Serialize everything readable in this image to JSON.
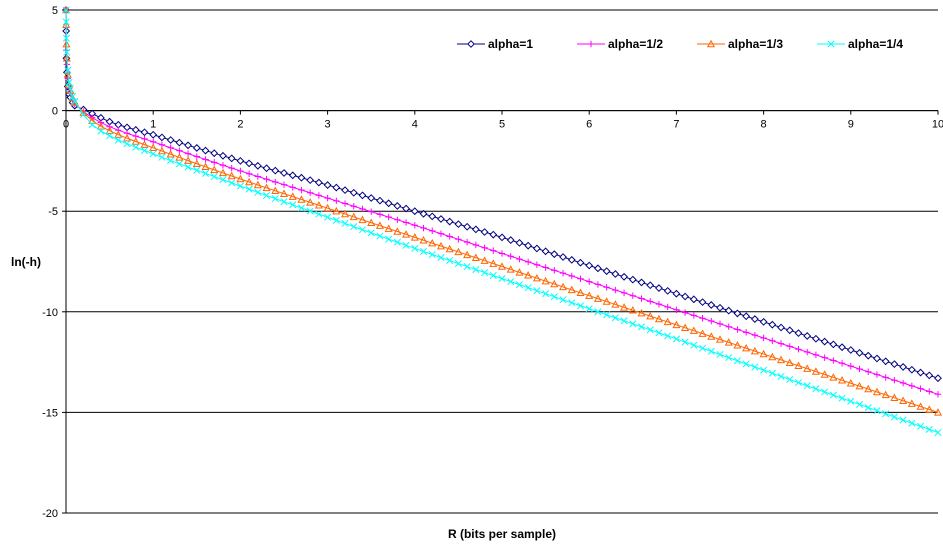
{
  "chart_data": {
    "type": "line",
    "title": "",
    "xlabel": "R (bits per sample)",
    "ylabel": "ln(-h)",
    "xlim": [
      0,
      10
    ],
    "ylim": [
      -20,
      5
    ],
    "x_ticks": [
      "0",
      "1",
      "2",
      "3",
      "4",
      "5",
      "6",
      "7",
      "8",
      "9",
      "10"
    ],
    "y_ticks": [
      "5",
      "0",
      "-5",
      "-10",
      "-15",
      "-20"
    ],
    "grid": "horizontal",
    "legend_position": "top-right",
    "series": [
      {
        "name": "alpha=1",
        "color": "#000080",
        "marker": "diamond",
        "x": [
          0,
          0.005,
          0.01,
          0.02,
          0.05,
          0.1,
          0.2,
          0.3,
          0.5,
          1,
          2,
          3,
          4,
          5,
          6,
          7,
          8,
          9,
          10
        ],
        "y": [
          5,
          2.6,
          1.9,
          1.2,
          0.65,
          0.25,
          0.05,
          -0.15,
          -0.55,
          -1.2,
          -2.5,
          -3.7,
          -5.0,
          -6.3,
          -7.7,
          -9.1,
          -10.5,
          -11.9,
          -13.3
        ]
      },
      {
        "name": "alpha=1/2",
        "color": "#ff00ff",
        "marker": "plus",
        "x": [
          0,
          0.005,
          0.01,
          0.02,
          0.05,
          0.1,
          0.2,
          0.3,
          0.5,
          1,
          2,
          3,
          4,
          5,
          6,
          7,
          8,
          9,
          10
        ],
        "y": [
          5,
          3.0,
          2.3,
          1.6,
          0.85,
          0.35,
          -0.05,
          -0.35,
          -0.8,
          -1.55,
          -3.0,
          -4.35,
          -5.7,
          -7.1,
          -8.5,
          -9.9,
          -11.3,
          -12.7,
          -14.1
        ]
      },
      {
        "name": "alpha=1/3",
        "color": "#ff6600",
        "marker": "triangle",
        "x": [
          0,
          0.005,
          0.01,
          0.02,
          0.05,
          0.1,
          0.2,
          0.3,
          0.5,
          1,
          2,
          3,
          4,
          5,
          6,
          7,
          8,
          9,
          10
        ],
        "y": [
          5,
          3.3,
          2.6,
          1.8,
          1.0,
          0.4,
          -0.1,
          -0.5,
          -1.0,
          -1.85,
          -3.4,
          -4.85,
          -6.3,
          -7.75,
          -9.2,
          -10.65,
          -12.1,
          -13.55,
          -15.0
        ]
      },
      {
        "name": "alpha=1/4",
        "color": "#00ffff",
        "marker": "x",
        "x": [
          0,
          0.005,
          0.01,
          0.02,
          0.05,
          0.1,
          0.2,
          0.3,
          0.5,
          1,
          2,
          3,
          4,
          5,
          6,
          7,
          8,
          9,
          10
        ],
        "y": [
          5,
          3.6,
          2.9,
          2.0,
          1.1,
          0.45,
          -0.2,
          -0.7,
          -1.25,
          -2.15,
          -3.75,
          -5.3,
          -6.85,
          -8.35,
          -9.85,
          -11.35,
          -12.9,
          -14.45,
          -16.0
        ]
      }
    ]
  }
}
